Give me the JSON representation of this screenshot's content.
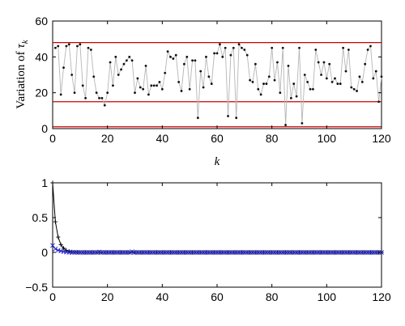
{
  "chart_data": [
    {
      "type": "line",
      "ylabel": "Variation of τ",
      "ylabel_main": "Variation of ",
      "ylabel_tau": "τ",
      "ylabel_sub": "k",
      "xlabel": "k",
      "xlim": [
        0,
        120
      ],
      "ylim": [
        0,
        60
      ],
      "xticks": [
        0,
        20,
        40,
        60,
        80,
        100,
        120
      ],
      "yticks": [
        0,
        20,
        40,
        60
      ],
      "reference_lines": [
        1,
        15,
        48
      ],
      "reference_color": "#cc0000",
      "series_line_color": "#b5b5b5",
      "series_marker_color": "#111111",
      "series": [
        {
          "x": [
            1,
            2,
            3,
            4,
            5,
            6,
            7,
            8,
            9,
            10,
            11,
            12,
            13,
            14,
            15,
            16,
            17,
            18,
            19,
            20,
            21,
            22,
            23,
            24,
            25,
            26,
            27,
            28,
            29,
            30,
            31,
            32,
            33,
            34,
            35,
            36,
            37,
            38,
            39,
            40,
            41,
            42,
            43,
            44,
            45,
            46,
            47,
            48,
            49,
            50,
            51,
            52,
            53,
            54,
            55,
            56,
            57,
            58,
            59,
            60,
            61,
            62,
            63,
            64,
            65,
            66,
            67,
            68,
            69,
            70,
            71,
            72,
            73,
            74,
            75,
            76,
            77,
            78,
            79,
            80,
            81,
            82,
            83,
            84,
            85,
            86,
            87,
            88,
            89,
            90,
            91,
            92,
            93,
            94,
            95,
            96,
            97,
            98,
            99,
            100,
            101,
            102,
            103,
            104,
            105,
            106,
            107,
            108,
            109,
            110,
            111,
            112,
            113,
            114,
            115,
            116,
            117,
            118,
            119,
            120
          ],
          "values": [
            45,
            46,
            19,
            34,
            46,
            47,
            30,
            20,
            46,
            47,
            24,
            17,
            45,
            44,
            29,
            20,
            17,
            17,
            13,
            20,
            37,
            24,
            40,
            30,
            33,
            36,
            38,
            40,
            38,
            20,
            28,
            23,
            22,
            35,
            19,
            24,
            24,
            24,
            26,
            22,
            31,
            43,
            40,
            39,
            41,
            26,
            21,
            36,
            40,
            22,
            38,
            38,
            6,
            32,
            23,
            40,
            29,
            25,
            42,
            42,
            47,
            40,
            45,
            7,
            41,
            45,
            6,
            47,
            45,
            44,
            41,
            27,
            26,
            36,
            22,
            19,
            25,
            25,
            29,
            45,
            27,
            37,
            20,
            45,
            2,
            35,
            17,
            25,
            18,
            45,
            3,
            30,
            26,
            22,
            22,
            44,
            37,
            30,
            37,
            28,
            36,
            26,
            28,
            25,
            25,
            45,
            32,
            44,
            23,
            22,
            21,
            29,
            26,
            36,
            44,
            46,
            28,
            32,
            15,
            29
          ]
        }
      ]
    },
    {
      "type": "line",
      "xlim": [
        0,
        120
      ],
      "ylim": [
        -0.5,
        1
      ],
      "xticks": [
        0,
        20,
        40,
        60,
        80,
        100,
        120
      ],
      "yticks": [
        -0.5,
        0,
        0.5,
        1
      ],
      "ytick_labels": [
        "−0.5",
        "0",
        "0.5",
        "1"
      ],
      "series": [
        {
          "color": "#000000",
          "marker": "+",
          "x": [
            0,
            1,
            2,
            3,
            4,
            5,
            6,
            7,
            8,
            9,
            10,
            11,
            12,
            13,
            14,
            15,
            16,
            17,
            18,
            19,
            20,
            21,
            22,
            23,
            24,
            25,
            26,
            27,
            28,
            29,
            30,
            31,
            32,
            33,
            34,
            35,
            36,
            37,
            38,
            39,
            40,
            41,
            42,
            43,
            44,
            45,
            46,
            47,
            48,
            49,
            50,
            51,
            52,
            53,
            54,
            55,
            56,
            57,
            58,
            59,
            60,
            61,
            62,
            63,
            64,
            65,
            66,
            67,
            68,
            69,
            70,
            71,
            72,
            73,
            74,
            75,
            76,
            77,
            78,
            79,
            80,
            81,
            82,
            83,
            84,
            85,
            86,
            87,
            88,
            89,
            90,
            91,
            92,
            93,
            94,
            95,
            96,
            97,
            98,
            99,
            100,
            101,
            102,
            103,
            104,
            105,
            106,
            107,
            108,
            109,
            110,
            111,
            112,
            113,
            114,
            115,
            116,
            117,
            118,
            119,
            120
          ],
          "values": [
            1,
            0.44,
            0.22,
            0.11,
            0.06,
            0.03,
            0.015,
            0.008,
            0.004,
            0.002,
            0.001,
            0,
            0,
            0,
            0,
            0,
            0,
            0,
            0,
            0,
            0,
            0,
            0,
            0,
            0,
            0,
            0,
            0,
            0,
            0,
            0,
            0,
            0,
            0,
            0,
            0,
            0,
            0,
            0,
            0,
            0,
            0,
            0,
            0,
            0,
            0,
            0,
            0,
            0,
            0,
            0,
            0,
            0,
            0,
            0,
            0,
            0,
            0,
            0,
            0,
            0,
            0,
            0,
            0,
            0,
            0,
            0,
            0,
            0,
            0,
            0,
            0,
            0,
            0,
            0,
            0,
            0,
            0,
            0,
            0,
            0,
            0,
            0,
            0,
            0,
            0,
            0,
            0,
            0,
            0,
            0,
            0,
            0,
            0,
            0,
            0,
            0,
            0,
            0,
            0,
            0,
            0,
            0,
            0,
            0,
            0,
            0,
            0,
            0,
            0,
            0,
            0,
            0,
            0,
            0,
            0,
            0,
            0,
            0,
            0,
            0
          ]
        },
        {
          "color": "#2222cc",
          "marker": "x",
          "x": [
            0,
            1,
            2,
            3,
            4,
            5,
            6,
            7,
            8,
            9,
            10,
            11,
            12,
            13,
            14,
            15,
            16,
            17,
            18,
            19,
            20,
            21,
            22,
            23,
            24,
            25,
            26,
            27,
            28,
            29,
            30,
            31,
            32,
            33,
            34,
            35,
            36,
            37,
            38,
            39,
            40,
            41,
            42,
            43,
            44,
            45,
            46,
            47,
            48,
            49,
            50,
            51,
            52,
            53,
            54,
            55,
            56,
            57,
            58,
            59,
            60,
            61,
            62,
            63,
            64,
            65,
            66,
            67,
            68,
            69,
            70,
            71,
            72,
            73,
            74,
            75,
            76,
            77,
            78,
            79,
            80,
            81,
            82,
            83,
            84,
            85,
            86,
            87,
            88,
            89,
            90,
            91,
            92,
            93,
            94,
            95,
            96,
            97,
            98,
            99,
            100,
            101,
            102,
            103,
            104,
            105,
            106,
            107,
            108,
            109,
            110,
            111,
            112,
            113,
            114,
            115,
            116,
            117,
            118,
            119,
            120
          ],
          "values": [
            0.1,
            0.05,
            0.03,
            0.02,
            0.01,
            0.005,
            0,
            0,
            0,
            0,
            0,
            0,
            0,
            0,
            0,
            0,
            0,
            0.005,
            0,
            0,
            0,
            0,
            0,
            0,
            0,
            0,
            0,
            0,
            0,
            0.01,
            0,
            0,
            0,
            0,
            0,
            0,
            0,
            0,
            0,
            0,
            0,
            0,
            0,
            0,
            0,
            0,
            0,
            0,
            0,
            0,
            0,
            0,
            0,
            0,
            0,
            0,
            0,
            0,
            0,
            0,
            0,
            0,
            0,
            0,
            0,
            0,
            0,
            0,
            0,
            0,
            0,
            0,
            0,
            0,
            0,
            0,
            0,
            0,
            0,
            0,
            0,
            0,
            0,
            0,
            0,
            0,
            0,
            0,
            0,
            0,
            0,
            0,
            0,
            0,
            0,
            0,
            0,
            0,
            0,
            0,
            0,
            0,
            0,
            0,
            0,
            0,
            0,
            0,
            0,
            0,
            0,
            0,
            0,
            0,
            0,
            0,
            0,
            0,
            0,
            0,
            0
          ]
        }
      ]
    }
  ]
}
